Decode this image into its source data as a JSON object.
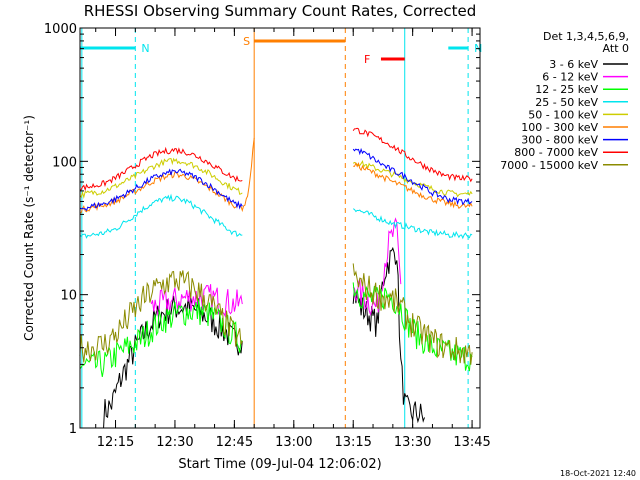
{
  "chart_data": {
    "type": "line",
    "title": "RHESSI Observing Summary Count Rates, Corrected",
    "xlabel": "Start Time (09-Jul-04 12:06:02)",
    "ylabel": "Corrected Count Rate (s⁻¹ detector⁻¹)",
    "y_scale": "log",
    "ylim": [
      1,
      1000
    ],
    "xlim": [
      "12:06:02",
      "13:47:00"
    ],
    "x_ticks": [
      "12:15",
      "12:30",
      "12:45",
      "13:00",
      "13:15",
      "13:30",
      "13:45"
    ],
    "y_ticks": [
      "1",
      "10",
      "100",
      "1000"
    ],
    "legend_header": [
      "Det 1,3,4,5,6,9,",
      "Att 0"
    ],
    "legend_position": "right",
    "footer": "18-Oct-2021 12:40",
    "flags": [
      {
        "label": "N",
        "color": "#00e5ee",
        "start": "12:06",
        "end": "12:20",
        "line_style": "solid"
      },
      {
        "label": "N",
        "color": "#00e5ee",
        "start": "13:39",
        "end": "13:44",
        "line_style": "solid"
      },
      {
        "label": "S",
        "color": "#ff7f00",
        "start": "12:50",
        "end": "13:13",
        "line_style": "solid"
      },
      {
        "label": "F",
        "color": "#ff0000",
        "start": "13:22",
        "end": "13:28",
        "line_style": "solid"
      }
    ],
    "vlines": [
      {
        "time": "12:06:30",
        "color": "#00e5ee",
        "style": "solid"
      },
      {
        "time": "12:20",
        "color": "#00e5ee",
        "style": "dashed"
      },
      {
        "time": "12:50",
        "color": "#ff7f00",
        "style": "solid"
      },
      {
        "time": "13:13",
        "color": "#ff7f00",
        "style": "dashed"
      },
      {
        "time": "13:28",
        "color": "#00e5ee",
        "style": "solid"
      },
      {
        "time": "13:44",
        "color": "#00e5ee",
        "style": "dashed"
      }
    ],
    "series": [
      {
        "name": "3 - 6 keV",
        "color": "#000000",
        "segments": [
          {
            "x": [
              "12:12",
              "12:14",
              "12:16",
              "12:18",
              "12:20",
              "12:22",
              "12:24",
              "12:26",
              "12:28",
              "12:30",
              "12:33",
              "12:36",
              "12:39",
              "12:42",
              "12:45",
              "12:47"
            ],
            "y": [
              1.3,
              1.5,
              2.2,
              3.0,
              4.0,
              5.0,
              6.0,
              7.0,
              7.5,
              8.0,
              8.0,
              7.5,
              6.5,
              5.5,
              4.5,
              4.5
            ]
          },
          {
            "x": [
              "13:15",
              "13:17",
              "13:19",
              "13:21",
              "13:22",
              "13:23",
              "13:24",
              "13:25",
              "13:26",
              "13:27",
              "13:28",
              "13:29",
              "13:31",
              "13:33"
            ],
            "y": [
              11,
              8,
              7,
              6,
              10,
              15,
              18,
              20,
              22,
              3,
              1.5,
              1.3,
              1.3,
              1.2
            ]
          }
        ]
      },
      {
        "name": "6 - 12 keV",
        "color": "#ff00ff",
        "segments": [
          {
            "x": [
              "12:24",
              "12:27",
              "12:30",
              "12:33",
              "12:36",
              "12:39",
              "12:42",
              "12:45",
              "12:47"
            ],
            "y": [
              8.0,
              8.5,
              9.0,
              9.5,
              9.5,
              9.5,
              9.0,
              8.5,
              8.5
            ]
          },
          {
            "x": [
              "13:15",
              "13:17",
              "13:19",
              "13:21",
              "13:22",
              "13:23",
              "13:24",
              "13:25",
              "13:26",
              "13:27"
            ],
            "y": [
              12,
              10,
              9,
              8,
              12,
              18,
              24,
              28,
              30,
              12
            ]
          }
        ]
      },
      {
        "name": "12 - 25 keV",
        "color": "#00ff00",
        "segments": [
          {
            "x": [
              "12:06",
              "12:09",
              "12:12",
              "12:15",
              "12:18",
              "12:21",
              "12:24",
              "12:27",
              "12:30",
              "12:33",
              "12:36",
              "12:39",
              "12:42",
              "12:45",
              "12:47"
            ],
            "y": [
              3.0,
              2.9,
              3.0,
              3.5,
              4.0,
              4.5,
              5.5,
              6.5,
              7.0,
              7.5,
              7.5,
              7.0,
              6.0,
              5.0,
              4.5
            ]
          },
          {
            "x": [
              "13:15",
              "13:17",
              "13:19",
              "13:21",
              "13:23",
              "13:25",
              "13:27",
              "13:29",
              "13:31",
              "13:33",
              "13:35",
              "13:37",
              "13:39",
              "13:41",
              "13:43",
              "13:45"
            ],
            "y": [
              12,
              10,
              9.5,
              9,
              10,
              9.5,
              8,
              6,
              5,
              4.5,
              4.0,
              3.8,
              3.6,
              3.5,
              3.4,
              3.4
            ]
          }
        ]
      },
      {
        "name": "25 - 50 keV",
        "color": "#00e5ee",
        "segments": [
          {
            "x": [
              "12:06",
              "12:09",
              "12:12",
              "12:15",
              "12:18",
              "12:21",
              "12:24",
              "12:27",
              "12:30",
              "12:33",
              "12:36",
              "12:39",
              "12:42",
              "12:45",
              "12:47"
            ],
            "y": [
              27,
              28,
              29,
              31,
              36,
              42,
              48,
              52,
              53,
              50,
              44,
              38,
              33,
              29,
              28
            ]
          },
          {
            "x": [
              "13:15",
              "13:17",
              "13:19",
              "13:21",
              "13:23",
              "13:25",
              "13:27",
              "13:29",
              "13:31",
              "13:33",
              "13:35",
              "13:37",
              "13:39",
              "13:41",
              "13:43",
              "13:45"
            ],
            "y": [
              45,
              42,
              40,
              38,
              36,
              34,
              33,
              32,
              31,
              30,
              29,
              29,
              28,
              28,
              28,
              28
            ]
          }
        ]
      },
      {
        "name": "50 - 100 keV",
        "color": "#cdcd00",
        "segments": [
          {
            "x": [
              "12:06",
              "12:09",
              "12:12",
              "12:15",
              "12:18",
              "12:21",
              "12:24",
              "12:27",
              "12:30",
              "12:33",
              "12:36",
              "12:39",
              "12:42",
              "12:45",
              "12:47"
            ],
            "y": [
              56,
              58,
              60,
              65,
              72,
              80,
              90,
              98,
              102,
              98,
              90,
              80,
              70,
              62,
              58
            ]
          },
          {
            "x": [
              "13:15",
              "13:17",
              "13:19",
              "13:21",
              "13:23",
              "13:25",
              "13:27",
              "13:29",
              "13:31",
              "13:33",
              "13:35",
              "13:37",
              "13:39",
              "13:41",
              "13:43",
              "13:45"
            ],
            "y": [
              100,
              96,
              92,
              88,
              84,
              80,
              76,
              72,
              68,
              65,
              62,
              60,
              58,
              57,
              57,
              57
            ]
          }
        ]
      },
      {
        "name": "100 - 300 keV",
        "color": "#ff7f00",
        "segments": [
          {
            "x": [
              "12:06",
              "12:09",
              "12:12",
              "12:15",
              "12:18",
              "12:21",
              "12:24",
              "12:27",
              "12:30",
              "12:33",
              "12:36",
              "12:39",
              "12:42",
              "12:45",
              "12:47",
              "12:48",
              "12:49",
              "12:50"
            ],
            "y": [
              43,
              45,
              47,
              50,
              56,
              62,
              70,
              76,
              80,
              77,
              70,
              62,
              54,
              47,
              45,
              50,
              75,
              150
            ]
          },
          {
            "x": [
              "13:15",
              "13:17",
              "13:19",
              "13:21",
              "13:23",
              "13:25",
              "13:27",
              "13:29",
              "13:31",
              "13:33",
              "13:35",
              "13:37",
              "13:39",
              "13:41",
              "13:43",
              "13:45"
            ],
            "y": [
              95,
              90,
              85,
              80,
              75,
              70,
              66,
              62,
              58,
              55,
              52,
              50,
              48,
              47,
              46,
              46
            ]
          }
        ]
      },
      {
        "name": "300 - 800 keV",
        "color": "#0000ff",
        "segments": [
          {
            "x": [
              "12:06",
              "12:09",
              "12:12",
              "12:15",
              "12:18",
              "12:21",
              "12:24",
              "12:27",
              "12:30",
              "12:33",
              "12:36",
              "12:39",
              "12:42",
              "12:45",
              "12:47"
            ],
            "y": [
              44,
              46,
              48,
              52,
              58,
              65,
              74,
              80,
              84,
              81,
              74,
              65,
              56,
              48,
              46
            ]
          },
          {
            "x": [
              "13:15",
              "13:17",
              "13:19",
              "13:21",
              "13:23",
              "13:25",
              "13:27",
              "13:29",
              "13:31",
              "13:33",
              "13:35",
              "13:37",
              "13:39",
              "13:41",
              "13:43",
              "13:45"
            ],
            "y": [
              125,
              118,
              110,
              100,
              92,
              85,
              80,
              74,
              68,
              63,
              58,
              55,
              52,
              51,
              50,
              50
            ]
          }
        ]
      },
      {
        "name": "800 - 7000 keV",
        "color": "#ff0000",
        "segments": [
          {
            "x": [
              "12:06",
              "12:09",
              "12:12",
              "12:15",
              "12:18",
              "12:21",
              "12:24",
              "12:27",
              "12:30",
              "12:33",
              "12:36",
              "12:39",
              "12:42",
              "12:45",
              "12:47"
            ],
            "y": [
              63,
              65,
              68,
              75,
              85,
              97,
              110,
              118,
              122,
              117,
              108,
              96,
              84,
              75,
              72
            ]
          },
          {
            "x": [
              "13:15",
              "13:17",
              "13:19",
              "13:21",
              "13:23",
              "13:25",
              "13:27",
              "13:29",
              "13:31",
              "13:33",
              "13:35",
              "13:37",
              "13:39",
              "13:41",
              "13:43",
              "13:45"
            ],
            "y": [
              175,
              168,
              160,
              150,
              140,
              130,
              118,
              108,
              100,
              92,
              86,
              80,
              77,
              75,
              74,
              74
            ]
          }
        ]
      },
      {
        "name": "7000 - 15000 keV",
        "color": "#8b8b00",
        "segments": [
          {
            "x": [
              "12:06",
              "12:09",
              "12:12",
              "12:15",
              "12:18",
              "12:21",
              "12:24",
              "12:27",
              "12:30",
              "12:33",
              "12:36",
              "12:39",
              "12:42",
              "12:45",
              "12:47"
            ],
            "y": [
              4.0,
              4.0,
              4.2,
              5.0,
              6.5,
              8.5,
              10.5,
              12,
              13,
              12,
              10.5,
              8.5,
              6.5,
              5.0,
              4.5
            ]
          },
          {
            "x": [
              "13:15",
              "13:17",
              "13:19",
              "13:21",
              "13:23",
              "13:25",
              "13:27",
              "13:29",
              "13:31",
              "13:33",
              "13:35",
              "13:37",
              "13:39",
              "13:41",
              "13:43",
              "13:45"
            ],
            "y": [
              14,
              12,
              11,
              10,
              9.5,
              9,
              8,
              6.5,
              5.5,
              5.0,
              4.5,
              4.2,
              4.0,
              3.8,
              3.7,
              3.7
            ]
          }
        ]
      }
    ]
  }
}
